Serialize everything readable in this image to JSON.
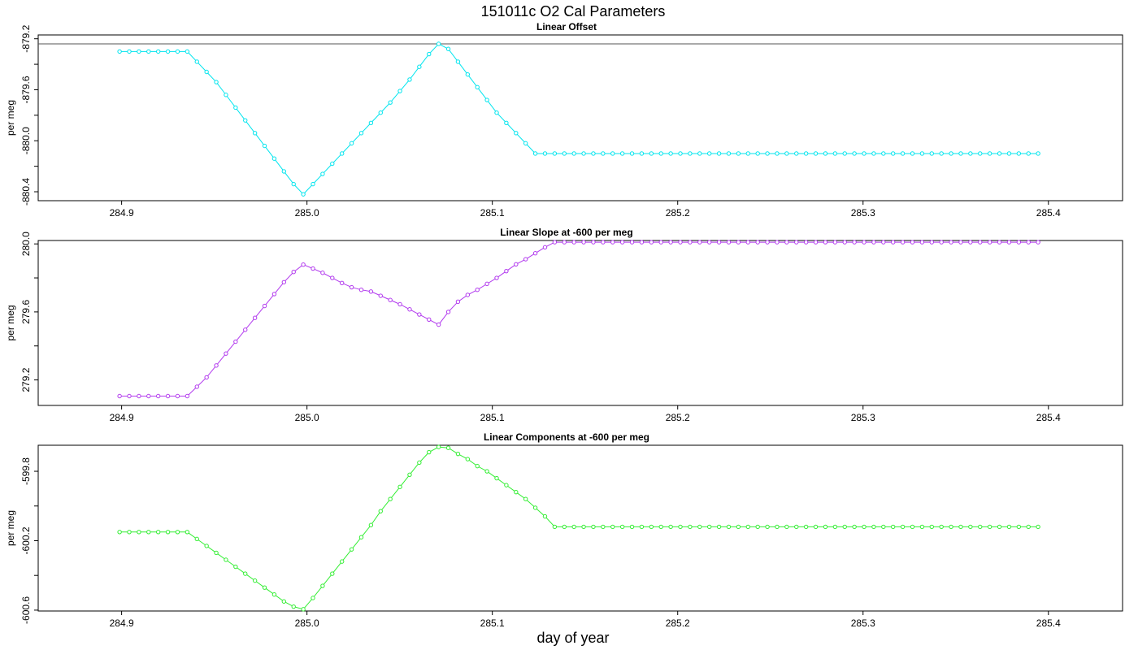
{
  "title": "151011c   O2 Cal Parameters",
  "xlabel": "day of year",
  "chart_data": [
    {
      "type": "line",
      "title": "Linear Offset",
      "ylabel": "per meg",
      "color": "#00e5ee",
      "xlim": [
        284.855,
        285.44
      ],
      "ylim": [
        -880.47,
        -879.17
      ],
      "xticks": [
        284.9,
        285.0,
        285.1,
        285.2,
        285.3,
        285.4
      ],
      "yticks": [
        -880.4,
        -880.2,
        -880.0,
        -879.8,
        -879.6,
        -879.4,
        -879.2
      ],
      "ytick_labels": [
        "-880.4",
        "",
        "-880.0",
        "",
        "-879.6",
        "",
        "-879.2"
      ],
      "hline": -879.24,
      "x_start": 284.8989,
      "x_step": 0.0052163,
      "values": [
        -879.3,
        -879.3,
        -879.3,
        -879.3,
        -879.3,
        -879.3,
        -879.3,
        -879.3,
        -879.38,
        -879.46,
        -879.54,
        -879.64,
        -879.74,
        -879.84,
        -879.94,
        -880.04,
        -880.14,
        -880.24,
        -880.34,
        -880.42,
        -880.34,
        -880.26,
        -880.18,
        -880.1,
        -880.02,
        -879.94,
        -879.86,
        -879.78,
        -879.7,
        -879.61,
        -879.52,
        -879.42,
        -879.32,
        -879.24,
        -879.28,
        -879.38,
        -879.48,
        -879.58,
        -879.68,
        -879.78,
        -879.86,
        -879.94,
        -880.02,
        -880.1,
        -880.1,
        -880.1,
        -880.1,
        -880.1,
        -880.1,
        -880.1,
        -880.1,
        -880.1,
        -880.1,
        -880.1,
        -880.1,
        -880.1,
        -880.1,
        -880.1,
        -880.1,
        -880.1,
        -880.1,
        -880.1,
        -880.1,
        -880.1,
        -880.1,
        -880.1,
        -880.1,
        -880.1,
        -880.1,
        -880.1,
        -880.1,
        -880.1,
        -880.1,
        -880.1,
        -880.1,
        -880.1,
        -880.1,
        -880.1,
        -880.1,
        -880.1,
        -880.1,
        -880.1,
        -880.1,
        -880.1,
        -880.1,
        -880.1,
        -880.1,
        -880.1,
        -880.1,
        -880.1,
        -880.1,
        -880.1,
        -880.1,
        -880.1,
        -880.1,
        -880.1
      ]
    },
    {
      "type": "line",
      "title": "Linear Slope at -600 per meg",
      "ylabel": "per meg",
      "color": "#b23aee",
      "xlim": [
        284.855,
        285.44
      ],
      "ylim": [
        279.05,
        280.02
      ],
      "xticks": [
        284.9,
        285.0,
        285.1,
        285.2,
        285.3,
        285.4
      ],
      "yticks": [
        279.2,
        279.4,
        279.6,
        279.8,
        280.0
      ],
      "ytick_labels": [
        "279.2",
        "",
        "279.6",
        "",
        "280.0"
      ],
      "x_start": 284.8989,
      "x_step": 0.0052163,
      "values": [
        279.105,
        279.105,
        279.105,
        279.105,
        279.105,
        279.105,
        279.105,
        279.105,
        279.16,
        279.215,
        279.285,
        279.355,
        279.425,
        279.495,
        279.565,
        279.635,
        279.705,
        279.775,
        279.835,
        279.878,
        279.855,
        279.83,
        279.8,
        279.77,
        279.745,
        279.73,
        279.72,
        279.695,
        279.67,
        279.645,
        279.615,
        279.585,
        279.555,
        279.525,
        279.6,
        279.66,
        279.7,
        279.73,
        279.765,
        279.8,
        279.84,
        279.88,
        279.91,
        279.945,
        279.98,
        280.01,
        280.01,
        280.01,
        280.01,
        280.01,
        280.01,
        280.01,
        280.01,
        280.01,
        280.01,
        280.01,
        280.01,
        280.01,
        280.01,
        280.01,
        280.01,
        280.01,
        280.01,
        280.01,
        280.01,
        280.01,
        280.01,
        280.01,
        280.01,
        280.01,
        280.01,
        280.01,
        280.01,
        280.01,
        280.01,
        280.01,
        280.01,
        280.01,
        280.01,
        280.01,
        280.01,
        280.01,
        280.01,
        280.01,
        280.01,
        280.01,
        280.01,
        280.01,
        280.01,
        280.01,
        280.01,
        280.01,
        280.01,
        280.01,
        280.01,
        280.01
      ]
    },
    {
      "type": "line",
      "title": "Linear Components at -600 per meg",
      "ylabel": "per meg",
      "color": "#33ee33",
      "xlim": [
        284.855,
        285.44
      ],
      "ylim": [
        -600.605,
        -599.65
      ],
      "xticks": [
        284.9,
        285.0,
        285.1,
        285.2,
        285.3,
        285.4
      ],
      "yticks": [
        -600.6,
        -600.4,
        -600.2,
        -600.0,
        -599.8
      ],
      "ytick_labels": [
        "-600.6",
        "",
        "-600.2",
        "",
        "-599.8"
      ],
      "x_start": 284.8989,
      "x_step": 0.0052163,
      "values": [
        -600.15,
        -600.15,
        -600.15,
        -600.15,
        -600.15,
        -600.15,
        -600.15,
        -600.15,
        -600.19,
        -600.23,
        -600.27,
        -600.31,
        -600.35,
        -600.39,
        -600.43,
        -600.47,
        -600.51,
        -600.55,
        -600.58,
        -600.595,
        -600.53,
        -600.46,
        -600.39,
        -600.32,
        -600.25,
        -600.18,
        -600.11,
        -600.03,
        -599.96,
        -599.89,
        -599.82,
        -599.75,
        -599.69,
        -599.66,
        -599.665,
        -599.7,
        -599.73,
        -599.77,
        -599.8,
        -599.84,
        -599.88,
        -599.92,
        -599.96,
        -600.01,
        -600.06,
        -600.12,
        -600.12,
        -600.12,
        -600.12,
        -600.12,
        -600.12,
        -600.12,
        -600.12,
        -600.12,
        -600.12,
        -600.12,
        -600.12,
        -600.12,
        -600.12,
        -600.12,
        -600.12,
        -600.12,
        -600.12,
        -600.12,
        -600.12,
        -600.12,
        -600.12,
        -600.12,
        -600.12,
        -600.12,
        -600.12,
        -600.12,
        -600.12,
        -600.12,
        -600.12,
        -600.12,
        -600.12,
        -600.12,
        -600.12,
        -600.12,
        -600.12,
        -600.12,
        -600.12,
        -600.12,
        -600.12,
        -600.12,
        -600.12,
        -600.12,
        -600.12,
        -600.12,
        -600.12,
        -600.12,
        -600.12,
        -600.12,
        -600.12,
        -600.12
      ]
    }
  ]
}
